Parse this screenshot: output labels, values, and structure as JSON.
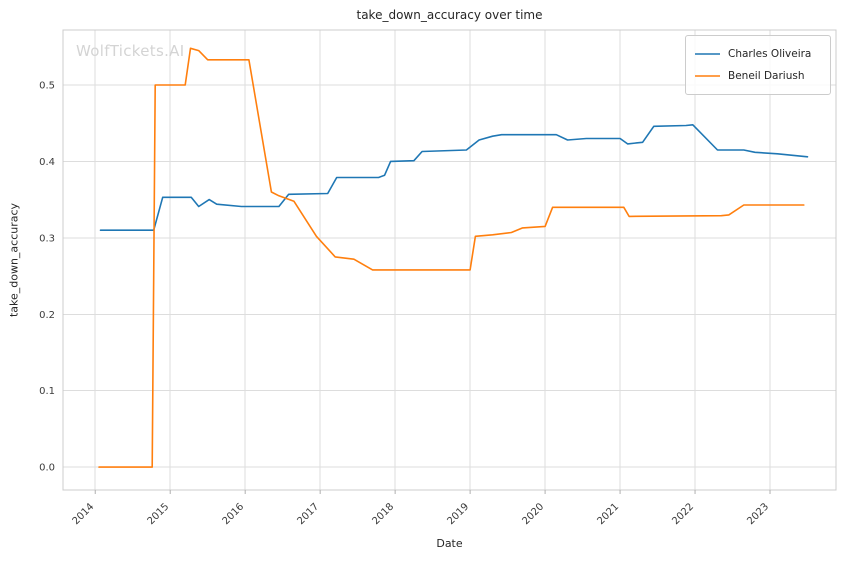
{
  "watermark": "WolfTickets.AI",
  "chart_data": {
    "type": "line",
    "title": "take_down_accuracy over time",
    "xlabel": "Date",
    "ylabel": "take_down_accuracy",
    "xlim": [
      2013.57,
      2023.88
    ],
    "ylim": [
      -0.03,
      0.572
    ],
    "x_ticks": [
      2014,
      2015,
      2016,
      2017,
      2018,
      2019,
      2020,
      2021,
      2022,
      2023
    ],
    "y_ticks": [
      0.0,
      0.1,
      0.2,
      0.3,
      0.4,
      0.5
    ],
    "grid": true,
    "legend_position": "upper right",
    "series": [
      {
        "name": "Charles Oliveira",
        "color": "#1f77b4",
        "x": [
          2014.07,
          2014.78,
          2014.9,
          2015.28,
          2015.38,
          2015.52,
          2015.62,
          2015.95,
          2016.45,
          2016.58,
          2017.1,
          2017.22,
          2017.78,
          2017.86,
          2017.94,
          2018.25,
          2018.36,
          2018.95,
          2019.12,
          2019.3,
          2019.42,
          2020.15,
          2020.3,
          2020.55,
          2021.0,
          2021.1,
          2021.3,
          2021.45,
          2021.88,
          2021.97,
          2022.3,
          2022.65,
          2022.8,
          2023.1,
          2023.5
        ],
        "y": [
          0.31,
          0.31,
          0.353,
          0.353,
          0.341,
          0.35,
          0.344,
          0.341,
          0.341,
          0.357,
          0.358,
          0.379,
          0.379,
          0.382,
          0.4,
          0.401,
          0.413,
          0.415,
          0.428,
          0.433,
          0.435,
          0.435,
          0.428,
          0.43,
          0.43,
          0.423,
          0.425,
          0.446,
          0.447,
          0.448,
          0.415,
          0.415,
          0.412,
          0.41,
          0.406
        ]
      },
      {
        "name": "Beneil Dariush",
        "color": "#ff7f0e",
        "x": [
          2014.05,
          2014.76,
          2014.8,
          2015.2,
          2015.27,
          2015.38,
          2015.5,
          2016.05,
          2016.35,
          2016.45,
          2016.65,
          2016.95,
          2017.2,
          2017.45,
          2017.7,
          2019.0,
          2019.07,
          2019.3,
          2019.55,
          2019.7,
          2020.0,
          2020.1,
          2021.05,
          2021.12,
          2022.35,
          2022.45,
          2022.65,
          2023.45
        ],
        "y": [
          0.0,
          0.0,
          0.5,
          0.5,
          0.548,
          0.545,
          0.533,
          0.533,
          0.36,
          0.355,
          0.348,
          0.302,
          0.275,
          0.272,
          0.258,
          0.258,
          0.302,
          0.304,
          0.307,
          0.313,
          0.315,
          0.34,
          0.34,
          0.328,
          0.329,
          0.33,
          0.343,
          0.343
        ]
      }
    ]
  }
}
